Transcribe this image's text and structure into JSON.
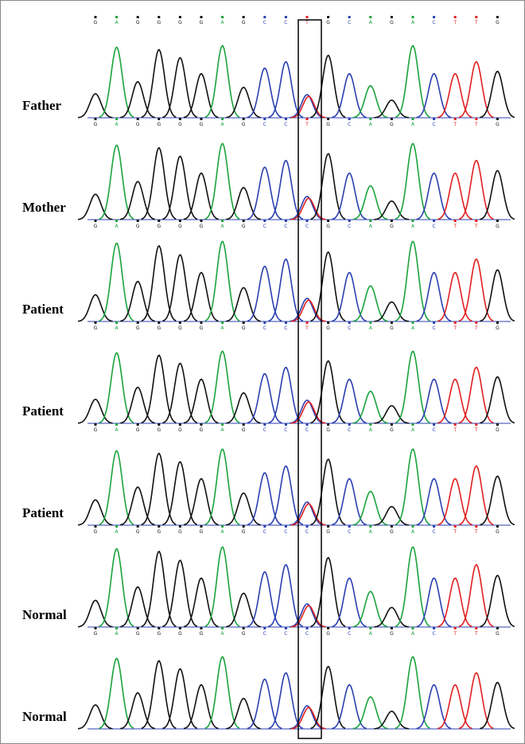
{
  "base_colors": {
    "A": "#1aa33c",
    "C": "#2b3fb0",
    "G": "#111111",
    "T": "#e02020"
  },
  "panels": [
    {
      "label": "Father",
      "bases": [
        "G",
        "A",
        "G",
        "G",
        "G",
        "G",
        "A",
        "G",
        "C",
        "C",
        "T",
        "G",
        "C",
        "A",
        "G",
        "A",
        "C",
        "T",
        "T",
        "G"
      ]
    },
    {
      "label": "Mother",
      "bases": [
        "G",
        "A",
        "G",
        "G",
        "G",
        "G",
        "A",
        "G",
        "C",
        "C",
        "T",
        "G",
        "C",
        "A",
        "G",
        "A",
        "C",
        "T",
        "T",
        "G"
      ]
    },
    {
      "label": "Patient",
      "bases": [
        "G",
        "A",
        "G",
        "G",
        "G",
        "G",
        "A",
        "G",
        "C",
        "C",
        "C",
        "G",
        "C",
        "A",
        "G",
        "A",
        "C",
        "T",
        "T",
        "G"
      ]
    },
    {
      "label": "Patient",
      "bases": [
        "G",
        "A",
        "G",
        "G",
        "G",
        "G",
        "A",
        "G",
        "C",
        "C",
        "T",
        "G",
        "C",
        "A",
        "G",
        "A",
        "C",
        "T",
        "T",
        "G"
      ]
    },
    {
      "label": "Patient",
      "bases": [
        "G",
        "A",
        "G",
        "G",
        "G",
        "G",
        "A",
        "G",
        "C",
        "C",
        "C",
        "G",
        "C",
        "A",
        "G",
        "A",
        "C",
        "T",
        "T",
        "G"
      ]
    },
    {
      "label": "Normal",
      "bases": [
        "G",
        "A",
        "G",
        "G",
        "G",
        "G",
        "A",
        "G",
        "C",
        "C",
        "C",
        "G",
        "C",
        "A",
        "G",
        "A",
        "C",
        "T",
        "T",
        "G"
      ]
    },
    {
      "label": "Normal",
      "bases": [
        "G",
        "A",
        "G",
        "G",
        "G",
        "G",
        "A",
        "G",
        "C",
        "C",
        "C",
        "G",
        "C",
        "A",
        "G",
        "A",
        "C",
        "T",
        "T",
        "G"
      ]
    }
  ]
}
